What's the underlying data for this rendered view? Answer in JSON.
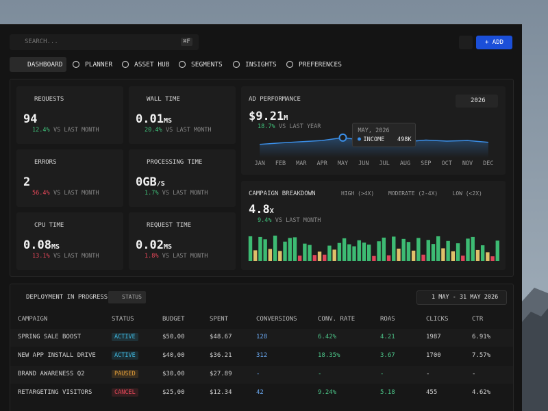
{
  "search": {
    "placeholder": "SEARCH...",
    "shortcut": "⌘F"
  },
  "add_button": "ADD",
  "nav": [
    "DASHBOARD",
    "PLANNER",
    "ASSET HUB",
    "SEGMENTS",
    "INSIGHTS",
    "PREFERENCES"
  ],
  "active_nav": 0,
  "cards": [
    {
      "title": "REQUESTS",
      "value": "94",
      "unit": "",
      "change": "12.4%",
      "trend": "up",
      "period": "VS LAST MONTH"
    },
    {
      "title": "WALL TIME",
      "value": "0.01",
      "unit": "MS",
      "change": "20.4%",
      "trend": "up",
      "period": "VS LAST MONTH"
    },
    {
      "title": "ERRORS",
      "value": "2",
      "unit": "",
      "change": "56.4%",
      "trend": "down",
      "period": "VS LAST MONTH"
    },
    {
      "title": "PROCESSING TIME",
      "value": "0GB",
      "unit": "/S",
      "change": "1.7%",
      "trend": "up",
      "period": "VS LAST MONTH"
    },
    {
      "title": "CPU TIME",
      "value": "0.08",
      "unit": "MS",
      "change": "13.1%",
      "trend": "down",
      "period": "VS LAST MONTH"
    },
    {
      "title": "REQUEST TIME",
      "value": "0.02",
      "unit": "MS",
      "change": "1.8%",
      "trend": "down",
      "period": "VS LAST MONTH"
    }
  ],
  "chart_data": [
    {
      "type": "line",
      "title": "AD PERFORMANCE",
      "value": "$9.21",
      "unit": "M",
      "change": "18.7%",
      "period": "VS LAST YEAR",
      "year": "2026",
      "categories": [
        "JAN",
        "FEB",
        "MAR",
        "APR",
        "MAY",
        "JUN",
        "JUL",
        "AUG",
        "SEP",
        "OCT",
        "NOV",
        "DEC"
      ],
      "series": [
        {
          "name": "INCOME",
          "color": "#3b8fe8",
          "values": [
            452,
            462,
            470,
            478,
            498,
            480,
            474,
            470,
            481,
            474,
            478,
            466
          ]
        }
      ],
      "ylim": [
        380,
        540
      ],
      "tooltip": {
        "index": 4,
        "date": "MAY, 2026",
        "value_label": "498K"
      }
    },
    {
      "type": "bar",
      "title": "CAMPAIGN BREAKDOWN",
      "value": "4.8",
      "unit": "X",
      "change": "9.4%",
      "period": "VS LAST MONTH",
      "legend": [
        {
          "name": "HIGH (>4X)",
          "color": "#3dbb73"
        },
        {
          "name": "MODERATE (2-4X)",
          "color": "#e0c06a"
        },
        {
          "name": "LOW (<2X)",
          "color": "#e0455a"
        }
      ],
      "values": [
        7.4,
        3.2,
        7.2,
        6.5,
        3.6,
        7.6,
        3.0,
        5.8,
        6.9,
        7.1,
        1.6,
        5.2,
        4.8,
        1.8,
        2.8,
        1.9,
        4.6,
        3.4,
        5.4,
        6.8,
        5.0,
        4.4,
        6.2,
        5.5,
        4.9,
        1.5,
        5.9,
        7.0,
        1.7,
        7.3,
        3.7,
        6.6,
        5.7,
        3.1,
        6.9,
        1.9,
        6.3,
        5.1,
        7.4,
        3.8,
        6.0,
        2.9,
        5.3,
        1.6,
        6.7,
        7.2,
        3.3,
        4.7,
        2.6,
        1.4,
        6.1
      ],
      "levels": [
        0,
        1,
        0,
        0,
        1,
        0,
        1,
        0,
        0,
        0,
        2,
        0,
        0,
        2,
        1,
        2,
        0,
        1,
        0,
        0,
        0,
        0,
        0,
        0,
        0,
        2,
        0,
        0,
        2,
        0,
        1,
        0,
        0,
        1,
        0,
        2,
        0,
        0,
        0,
        1,
        0,
        1,
        0,
        2,
        0,
        0,
        1,
        0,
        1,
        2,
        0
      ],
      "ylim": [
        0,
        8
      ]
    }
  ],
  "deployment": {
    "title": "DEPLOYMENT IN PROGRESS",
    "status_button": "STATUS",
    "date_range": "1 MAY - 31 MAY 2026",
    "columns": [
      {
        "label": "CAMPAIGN"
      },
      {
        "label": "STATUS"
      },
      {
        "label": "BUDGET"
      },
      {
        "label": "SPENT"
      },
      {
        "label": "CONVERSIONS",
        "color": "#6aa8f0"
      },
      {
        "label": "CONV. RATE",
        "color": "#4cc488"
      },
      {
        "label": "ROAS",
        "color": "#4cc488"
      },
      {
        "label": "CLICKS"
      },
      {
        "label": "CTR"
      }
    ],
    "rows": [
      {
        "cells": [
          "SPRING SALE BOOST",
          "ACTIVE",
          "$50,00",
          "$48.67",
          "128",
          "6.42%",
          "4.21",
          "1987",
          "6.91%"
        ],
        "status_color": "#3fb8e0"
      },
      {
        "cells": [
          "NEW APP INSTALL DRIVE",
          "ACTIVE",
          "$40,00",
          "$36.21",
          "312",
          "18.35%",
          "3.67",
          "1700",
          "7.57%"
        ],
        "status_color": "#3fb8e0"
      },
      {
        "cells": [
          "BRAND AWARENESS Q2",
          "PAUSED",
          "$30,00",
          "$27.89",
          "-",
          "-",
          "-",
          "-",
          "-"
        ],
        "status_color": "#e8a23a"
      },
      {
        "cells": [
          "RETARGETING VISITORS",
          "CANCEL",
          "$25,00",
          "$12.34",
          "42",
          "9.24%",
          "5.18",
          "455",
          "4.62%"
        ],
        "status_color": "#e8485a"
      }
    ]
  }
}
